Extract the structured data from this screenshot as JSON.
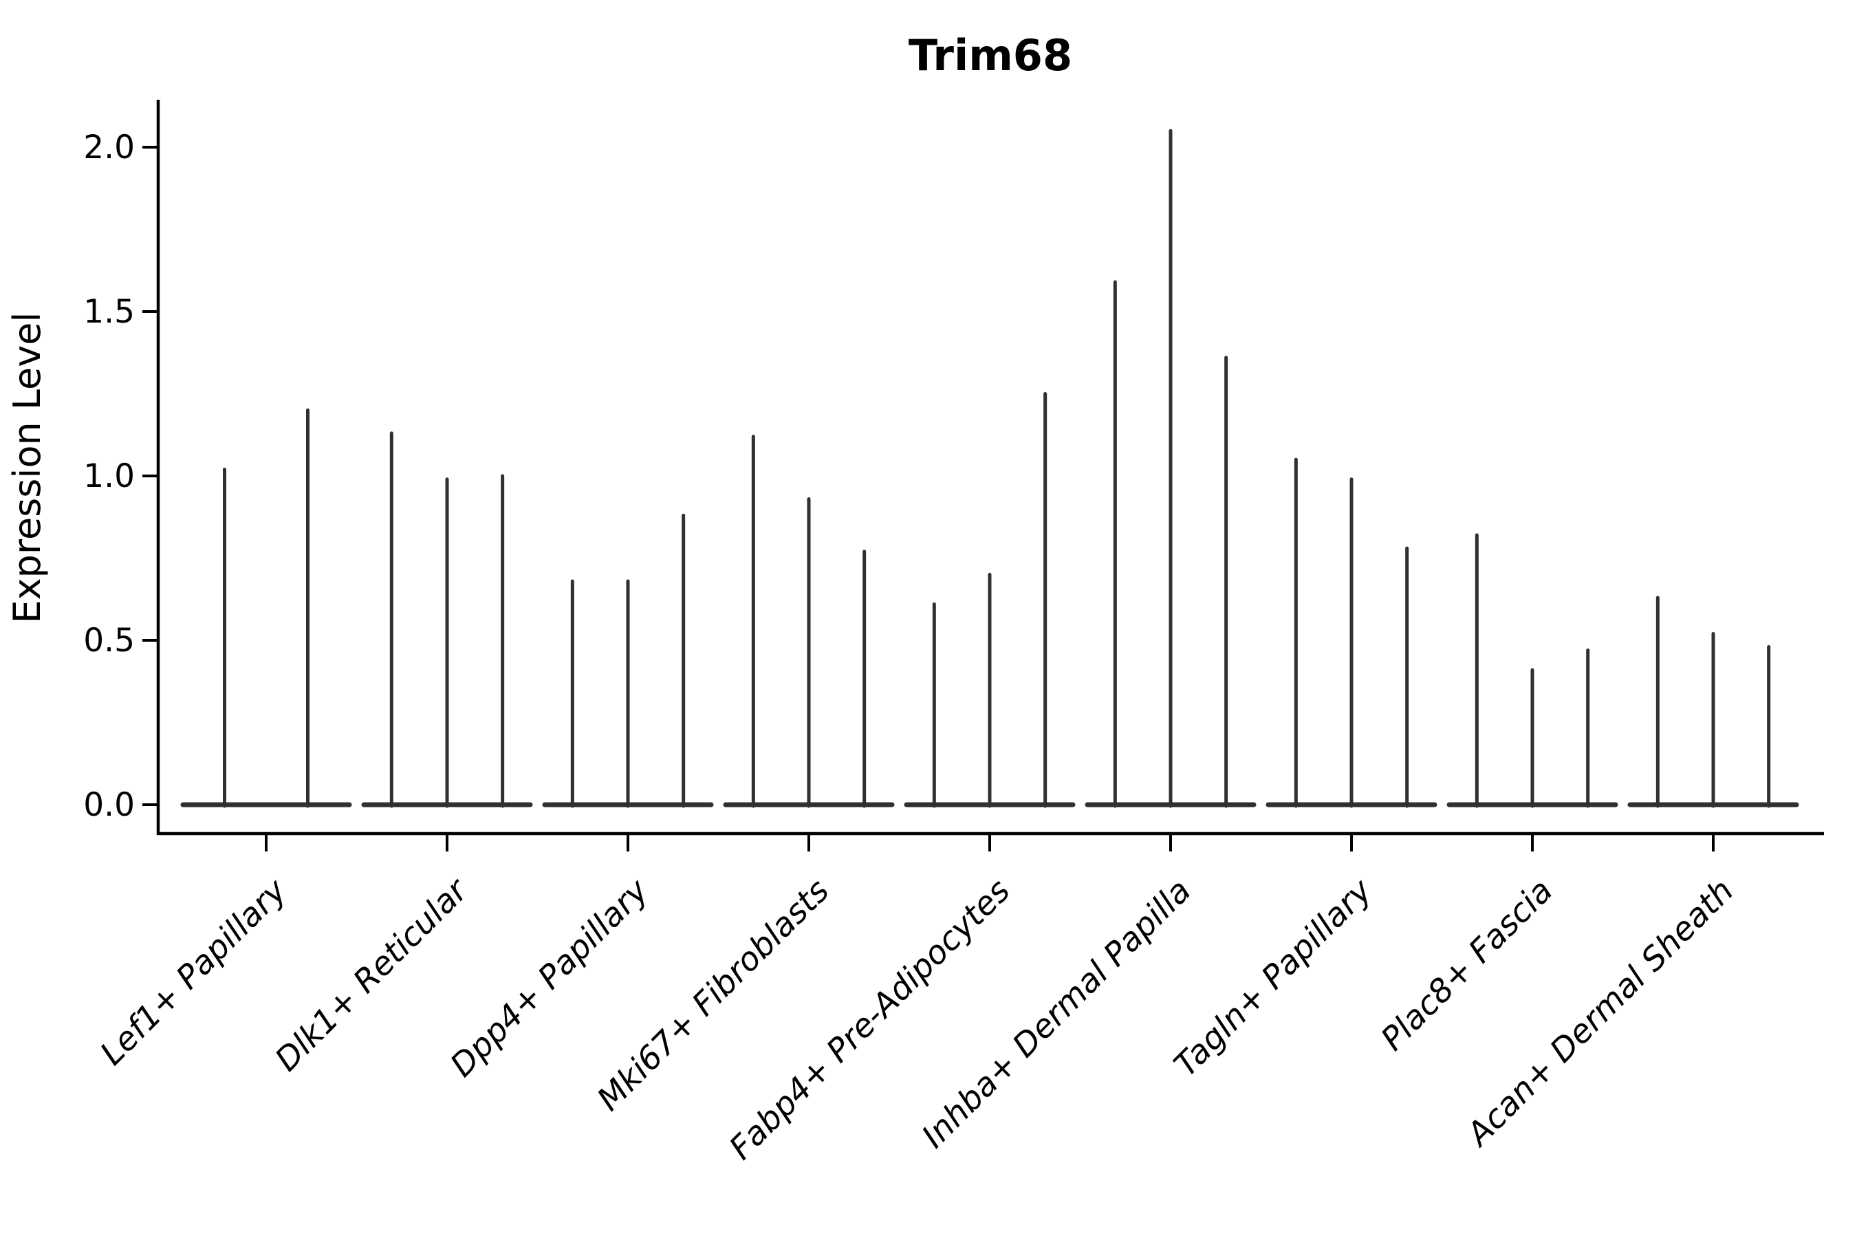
{
  "title": "Trim68",
  "axes": {
    "ylabel": "Expression Level",
    "xlabel": "",
    "ytick_labels": [
      "0.0",
      "0.5",
      "1.0",
      "1.5",
      "2.0"
    ],
    "ytick_values": [
      0.0,
      0.5,
      1.0,
      1.5,
      2.0
    ]
  },
  "colors": {
    "background": "#ffffff",
    "violin_stroke": "#303030",
    "axis": "#000000",
    "text": "#000000"
  },
  "chart_data": {
    "type": "violin",
    "title": "Trim68",
    "ylabel": "Expression Level",
    "xlabel": "",
    "ylim": [
      0,
      2.15
    ],
    "yticks": [
      0.0,
      0.5,
      1.0,
      1.5,
      2.0
    ],
    "grid": false,
    "legend_position": "none",
    "description": "Single-cell expression violin plot; each category shows 2-3 very thin violins: a wide flat base at 0 (most cells zero) and a thin spike reaching the maximum expression value listed.",
    "categories": [
      "Lef1+ Papillary",
      "Dlk1+ Reticular",
      "Dpp4+ Papillary",
      "Mki67+ Fibroblasts",
      "Fabp4+ Pre-Adipocytes",
      "Inhba+ Dermal Papilla",
      "Tagln+ Papillary",
      "Plac8+ Fascia",
      "Acan+ Dermal Sheath"
    ],
    "series": [
      {
        "category": "Lef1+ Papillary",
        "violin_spike_maxima": [
          1.02,
          1.2
        ]
      },
      {
        "category": "Dlk1+ Reticular",
        "violin_spike_maxima": [
          1.13,
          0.99,
          1.0
        ]
      },
      {
        "category": "Dpp4+ Papillary",
        "violin_spike_maxima": [
          0.68,
          0.68,
          0.88
        ]
      },
      {
        "category": "Mki67+ Fibroblasts",
        "violin_spike_maxima": [
          1.12,
          0.93,
          0.77
        ]
      },
      {
        "category": "Fabp4+ Pre-Adipocytes",
        "violin_spike_maxima": [
          0.61,
          0.7,
          1.25
        ]
      },
      {
        "category": "Inhba+ Dermal Papilla",
        "violin_spike_maxima": [
          1.59,
          2.05,
          1.36
        ]
      },
      {
        "category": "Tagln+ Papillary",
        "violin_spike_maxima": [
          1.05,
          0.99,
          0.78
        ]
      },
      {
        "category": "Plac8+ Fascia",
        "violin_spike_maxima": [
          0.82,
          0.41,
          0.47
        ]
      },
      {
        "category": "Acan+ Dermal Sheath",
        "violin_spike_maxima": [
          0.63,
          0.52,
          0.48
        ]
      }
    ]
  }
}
